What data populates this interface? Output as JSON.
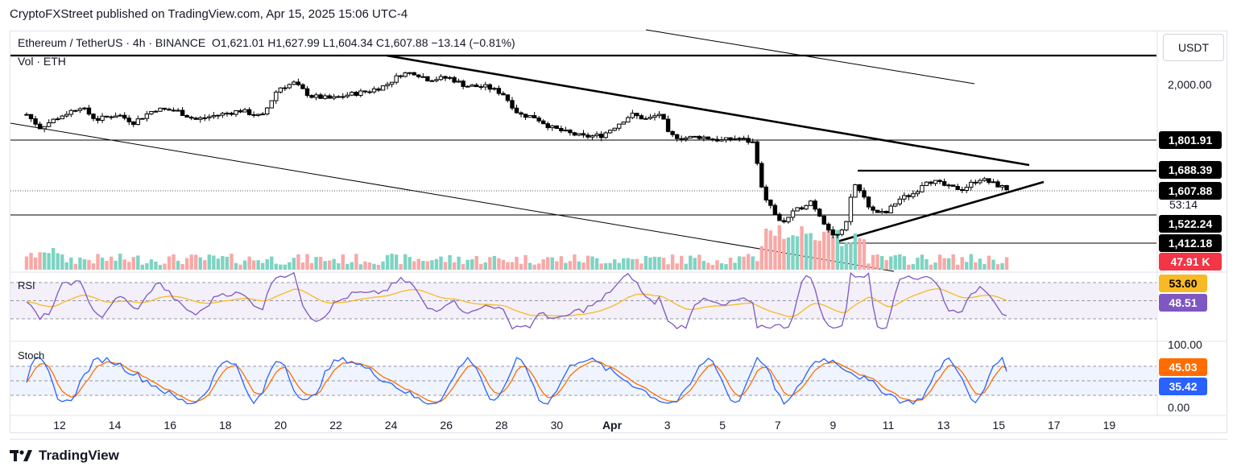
{
  "header": {
    "published": "CryptoFXStreet published on TradingView.com, Apr 15, 2025 15:06 UTC-4",
    "symbol": "Ethereum / TetherUS · 4h · BINANCE",
    "ohlc": "O1,621.01  H1,627.99  L1,604.34  C1,607.88  −13.14 (−0.81%)",
    "volume_label": "Vol · ETH",
    "currency": "USDT"
  },
  "colors": {
    "up": "#089981",
    "down": "#f23645",
    "rsi": "#7e57c2",
    "rsi_ma": "#f7b924",
    "stoch_k": "#2962ff",
    "stoch_d": "#ff6d00"
  },
  "price_axis": {
    "ticks": [
      {
        "label": "2,000.00",
        "value": 2000
      }
    ],
    "badges": [
      {
        "label": "1,801.91",
        "value": 1801.91,
        "style": "black"
      },
      {
        "label": "1,688.39",
        "value": 1688.39,
        "style": "black"
      },
      {
        "label": "1,607.88",
        "value": 1607.88,
        "style": "black"
      },
      {
        "label": "53:14",
        "value": 1572,
        "style": "plain"
      },
      {
        "label": "1,522.24",
        "value": 1522.24,
        "style": "black"
      },
      {
        "label": "1,412.18",
        "value": 1412.18,
        "style": "black"
      },
      {
        "label": "47.91 K",
        "value": 1362,
        "style": "red"
      }
    ]
  },
  "rsi": {
    "label": "RSI",
    "value": "48.51",
    "ma_value": "53.60"
  },
  "stoch": {
    "label": "Stoch",
    "k_value": "35.42",
    "d_value": "45.03",
    "ticks": [
      "100.00",
      "0.00"
    ]
  },
  "chart_data": {
    "type": "candlestick",
    "title": "Ethereum / TetherUS · 4h · BINANCE",
    "x_ticks": [
      "12",
      "14",
      "16",
      "18",
      "20",
      "22",
      "24",
      "26",
      "28",
      "30",
      "Apr",
      "3",
      "5",
      "7",
      "9",
      "11",
      "13",
      "15",
      "17",
      "19"
    ],
    "x_range_days": [
      "2025-03-10",
      "2025-04-20"
    ],
    "ohlc_last": {
      "open": 1621.01,
      "high": 1627.99,
      "low": 1604.34,
      "close": 1607.88,
      "change": -13.14,
      "change_pct": -0.81
    },
    "horizontal_levels": [
      2150,
      1801.91,
      1688.39,
      1522.24,
      1412.18
    ],
    "close_anchors": [
      [
        0,
        1900
      ],
      [
        0.5,
        1850
      ],
      [
        1.2,
        1890
      ],
      [
        2,
        1930
      ],
      [
        2.6,
        1880
      ],
      [
        3.4,
        1900
      ],
      [
        4,
        1870
      ],
      [
        4.8,
        1920
      ],
      [
        5.6,
        1915
      ],
      [
        6.3,
        1880
      ],
      [
        7,
        1895
      ],
      [
        8,
        1915
      ],
      [
        8.8,
        1890
      ],
      [
        9.4,
        2000
      ],
      [
        10,
        2020
      ],
      [
        10.6,
        1970
      ],
      [
        11.4,
        1960
      ],
      [
        12,
        1975
      ],
      [
        12.8,
        1990
      ],
      [
        13.4,
        2010
      ],
      [
        14,
        2055
      ],
      [
        14.5,
        2060
      ],
      [
        15,
        2035
      ],
      [
        15.8,
        2040
      ],
      [
        16.4,
        2010
      ],
      [
        17.2,
        2005
      ],
      [
        17.8,
        1980
      ],
      [
        18.4,
        1900
      ],
      [
        19,
        1890
      ],
      [
        19.6,
        1850
      ],
      [
        20.2,
        1830
      ],
      [
        20.8,
        1815
      ],
      [
        21.5,
        1820
      ],
      [
        22,
        1855
      ],
      [
        22.6,
        1900
      ],
      [
        23.2,
        1880
      ],
      [
        23.7,
        1905
      ],
      [
        24,
        1820
      ],
      [
        24.6,
        1810
      ],
      [
        25.2,
        1815
      ],
      [
        26,
        1800
      ],
      [
        26.6,
        1810
      ],
      [
        27.2,
        1790
      ],
      [
        27.5,
        1600
      ],
      [
        27.8,
        1550
      ],
      [
        28.2,
        1480
      ],
      [
        28.6,
        1520
      ],
      [
        29.3,
        1570
      ],
      [
        29.8,
        1490
      ],
      [
        30.2,
        1430
      ],
      [
        30.6,
        1460
      ],
      [
        30.9,
        1640
      ],
      [
        31.2,
        1600
      ],
      [
        31.6,
        1530
      ],
      [
        32.1,
        1520
      ],
      [
        32.6,
        1575
      ],
      [
        33.2,
        1600
      ],
      [
        33.6,
        1650
      ],
      [
        34,
        1640
      ],
      [
        34.5,
        1620
      ],
      [
        35,
        1615
      ],
      [
        35.6,
        1655
      ],
      [
        36,
        1640
      ],
      [
        36.4,
        1625
      ],
      [
        36.8,
        1608
      ]
    ],
    "rsi_range": [
      20,
      80
    ],
    "stoch_range": [
      0,
      100
    ]
  },
  "footer": {
    "brand": "TradingView"
  }
}
